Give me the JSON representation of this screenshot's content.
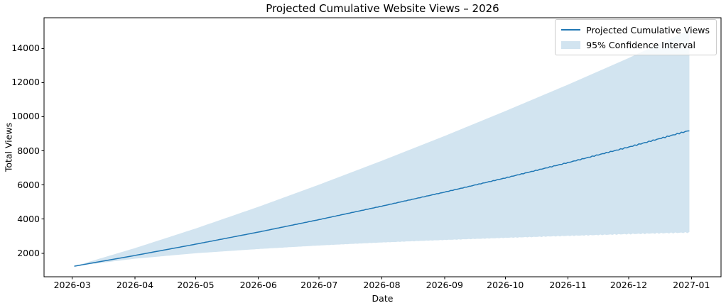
{
  "chart_data": {
    "type": "line",
    "title": "Projected Cumulative Website Views – 2026",
    "xlabel": "Date",
    "ylabel": "Total Views",
    "x_tick_labels": [
      "2026-03",
      "2026-04",
      "2026-05",
      "2026-06",
      "2026-07",
      "2026-08",
      "2026-09",
      "2026-10",
      "2026-11",
      "2026-12",
      "2027-01"
    ],
    "x_tick_day_offsets": [
      0,
      31,
      61,
      92,
      122,
      153,
      184,
      214,
      245,
      275,
      306
    ],
    "y_ticks": [
      2000,
      4000,
      6000,
      8000,
      10000,
      12000,
      14000
    ],
    "ylim": [
      620,
      15800
    ],
    "grid": false,
    "line_color": "#1f77b4",
    "band_fill": "rgba(31,119,180,0.2)",
    "data_day_offsets": [
      1,
      31,
      61,
      92,
      122,
      153,
      184,
      214,
      245,
      275,
      305
    ],
    "series": [
      {
        "name": "Projected Cumulative Views",
        "values": [
          1240,
          1870,
          2530,
          3240,
          3970,
          4760,
          5580,
          6410,
          7310,
          8220,
          9190
        ]
      },
      {
        "name": "95% CI upper bound",
        "values": [
          1240,
          2300,
          3450,
          4720,
          6020,
          7420,
          8870,
          10330,
          11880,
          13440,
          15090
        ]
      },
      {
        "name": "95% CI lower bound",
        "values": [
          1240,
          1680,
          2000,
          2250,
          2460,
          2640,
          2790,
          2920,
          3040,
          3150,
          3250
        ]
      }
    ],
    "seasonality": {
      "wiggle_period_days": 2.33,
      "line_wiggle_amplitude": 35,
      "band_scallop_depth": 70,
      "growth_power": 2
    },
    "legend": {
      "position": "upper right",
      "entries": [
        {
          "label": "Projected Cumulative Views",
          "type": "line"
        },
        {
          "label": "95% Confidence Interval",
          "type": "patch"
        }
      ]
    }
  }
}
